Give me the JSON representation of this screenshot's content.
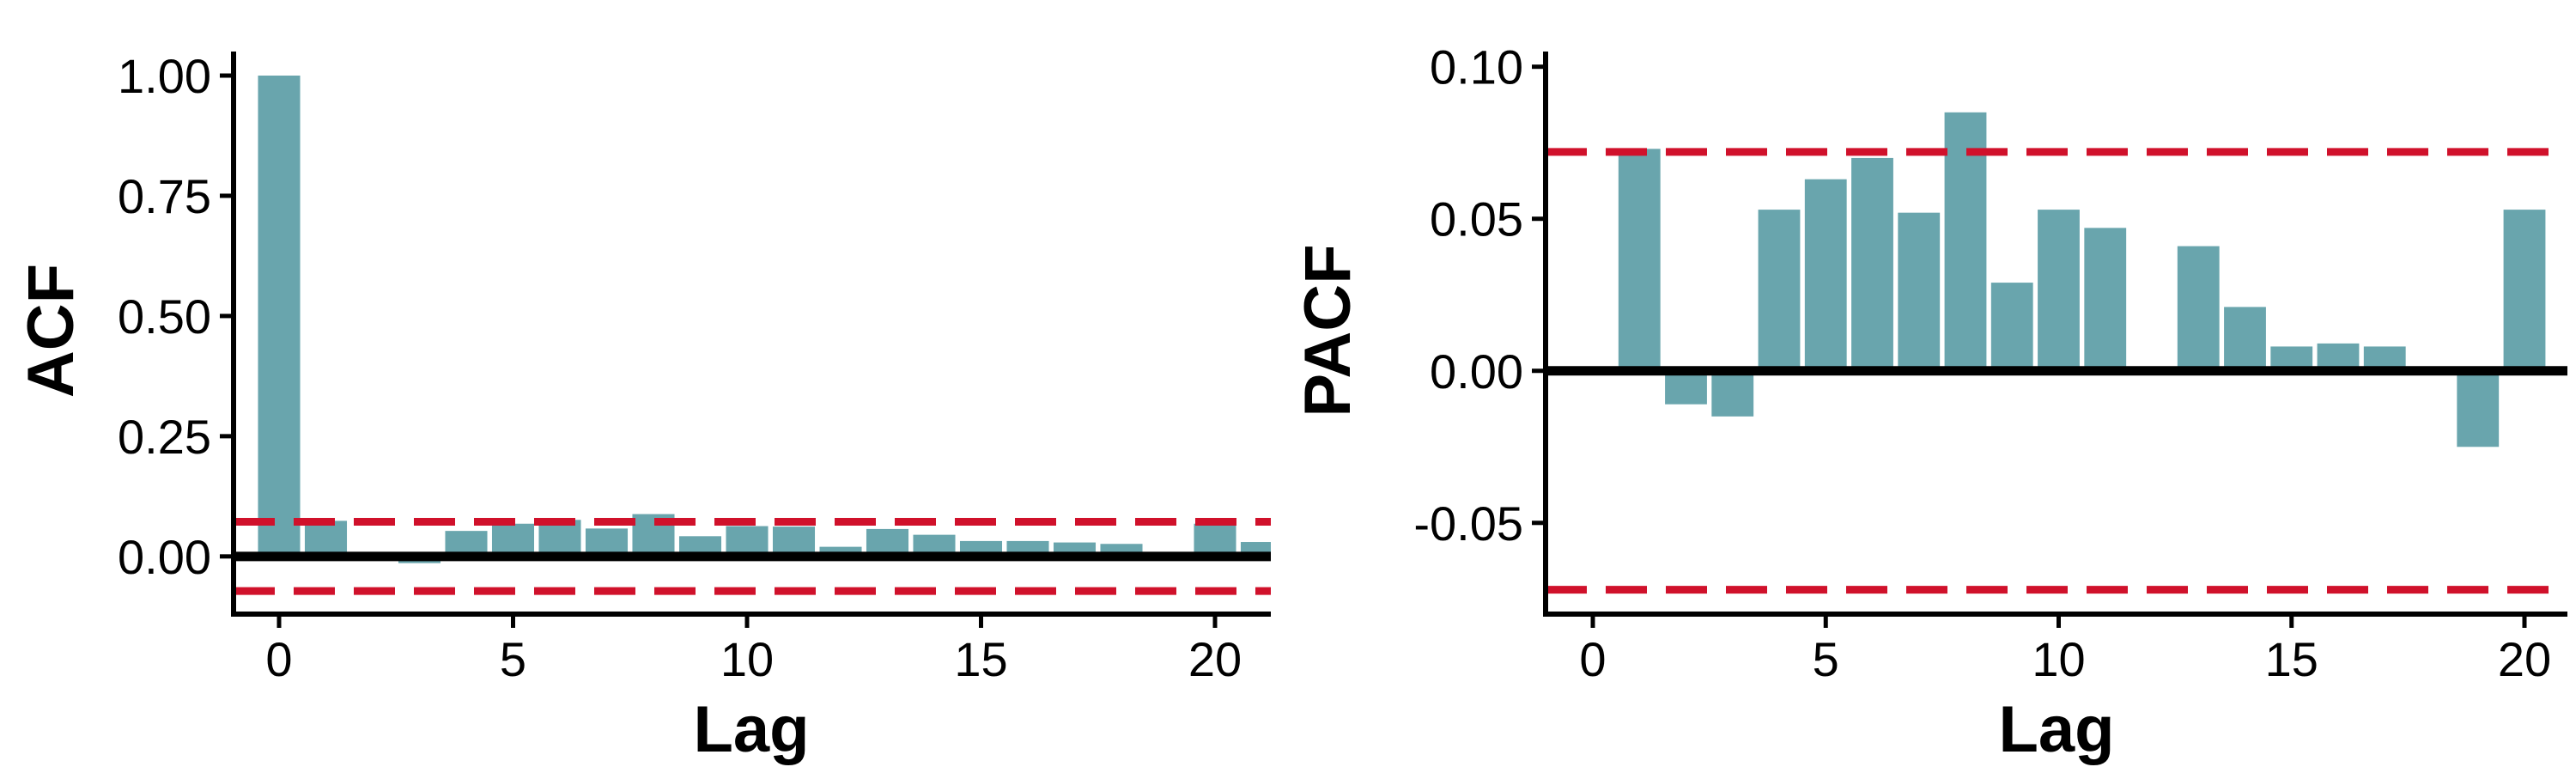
{
  "colors": {
    "bar": "#69a5ad",
    "ci_line": "#d0112b",
    "axis": "#000000",
    "zero_line": "#000000"
  },
  "chart_data": [
    {
      "type": "bar",
      "title": "",
      "xlabel": "Lag",
      "ylabel": "ACF",
      "xlim": [
        -1,
        21
      ],
      "ylim": [
        -0.12,
        1.05
      ],
      "xticks": [
        0,
        5,
        10,
        15,
        20
      ],
      "yticks": [
        0.0,
        0.25,
        0.5,
        0.75,
        1.0
      ],
      "ytick_labels": [
        "0.00",
        "0.25",
        "0.50",
        "0.75",
        "1.00"
      ],
      "x": [
        0,
        1,
        2,
        3,
        4,
        5,
        6,
        7,
        8,
        9,
        10,
        11,
        12,
        13,
        14,
        15,
        16,
        17,
        18,
        19,
        20,
        21
      ],
      "values": [
        1.0,
        0.074,
        0.0,
        -0.014,
        0.053,
        0.068,
        0.076,
        0.058,
        0.088,
        0.042,
        0.063,
        0.062,
        0.02,
        0.057,
        0.045,
        0.032,
        0.032,
        0.029,
        0.026,
        0.0,
        0.068,
        0.03
      ],
      "confidence_interval": [
        -0.072,
        0.072
      ],
      "grid": false
    },
    {
      "type": "bar",
      "title": "",
      "xlabel": "Lag",
      "ylabel": "PACF",
      "xlim": [
        -1,
        21
      ],
      "ylim": [
        -0.08,
        0.105
      ],
      "xticks": [
        0,
        5,
        10,
        15,
        20
      ],
      "yticks": [
        -0.05,
        0.0,
        0.05,
        0.1
      ],
      "ytick_labels": [
        "-0.05",
        "0.00",
        "0.05",
        "0.10"
      ],
      "x": [
        1,
        2,
        3,
        4,
        5,
        6,
        7,
        8,
        9,
        10,
        11,
        12,
        13,
        14,
        15,
        16,
        17,
        18,
        19,
        20
      ],
      "values": [
        0.073,
        -0.011,
        -0.015,
        0.053,
        0.063,
        0.07,
        0.052,
        0.085,
        0.029,
        0.053,
        0.047,
        0.0,
        0.041,
        0.021,
        0.008,
        0.009,
        0.008,
        0.0,
        -0.025,
        0.053
      ],
      "confidence_interval": [
        -0.072,
        0.072
      ],
      "grid": false
    }
  ]
}
